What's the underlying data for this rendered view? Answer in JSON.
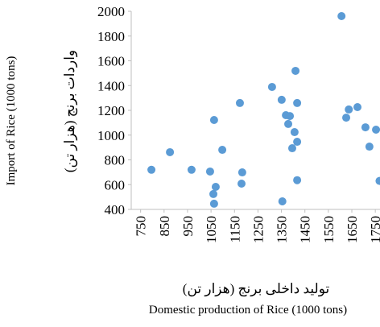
{
  "chart_data": {
    "type": "scatter",
    "x_label": "Domestic production of Rice (1000 tons)",
    "x_label_fa": "تولید داخلی برنج (هزار تن)",
    "y_label": "Import of Rice (1000 tons)",
    "y_label_fa": "واردات برنج (هزار تن)",
    "color": "#5b9bd5",
    "xlim": [
      710,
      1770
    ],
    "ylim": [
      400,
      2000
    ],
    "xticks": [
      750,
      850,
      950,
      1050,
      1150,
      1250,
      1350,
      1450,
      1550,
      1650,
      1750
    ],
    "yticks": [
      400,
      600,
      800,
      1000,
      1200,
      1400,
      1600,
      1800,
      2000
    ],
    "x": [
      796,
      875,
      967,
      1046,
      1070,
      1060,
      1063,
      1063,
      1098,
      1173,
      1180,
      1183,
      1310,
      1351,
      1354,
      1369,
      1386,
      1379,
      1396,
      1410,
      1417,
      1406,
      1417,
      1417,
      1606,
      1626,
      1637,
      1674,
      1708,
      1725,
      1753,
      1768
    ],
    "y": [
      720,
      862,
      720,
      706,
      582,
      524,
      446,
      1122,
      881,
      1259,
      608,
      699,
      1389,
      1285,
      465,
      1161,
      1154,
      1090,
      894,
      1519,
      1259,
      1024,
      946,
      636,
      1961,
      1141,
      1207,
      1226,
      1063,
      907,
      1044,
      630
    ]
  }
}
